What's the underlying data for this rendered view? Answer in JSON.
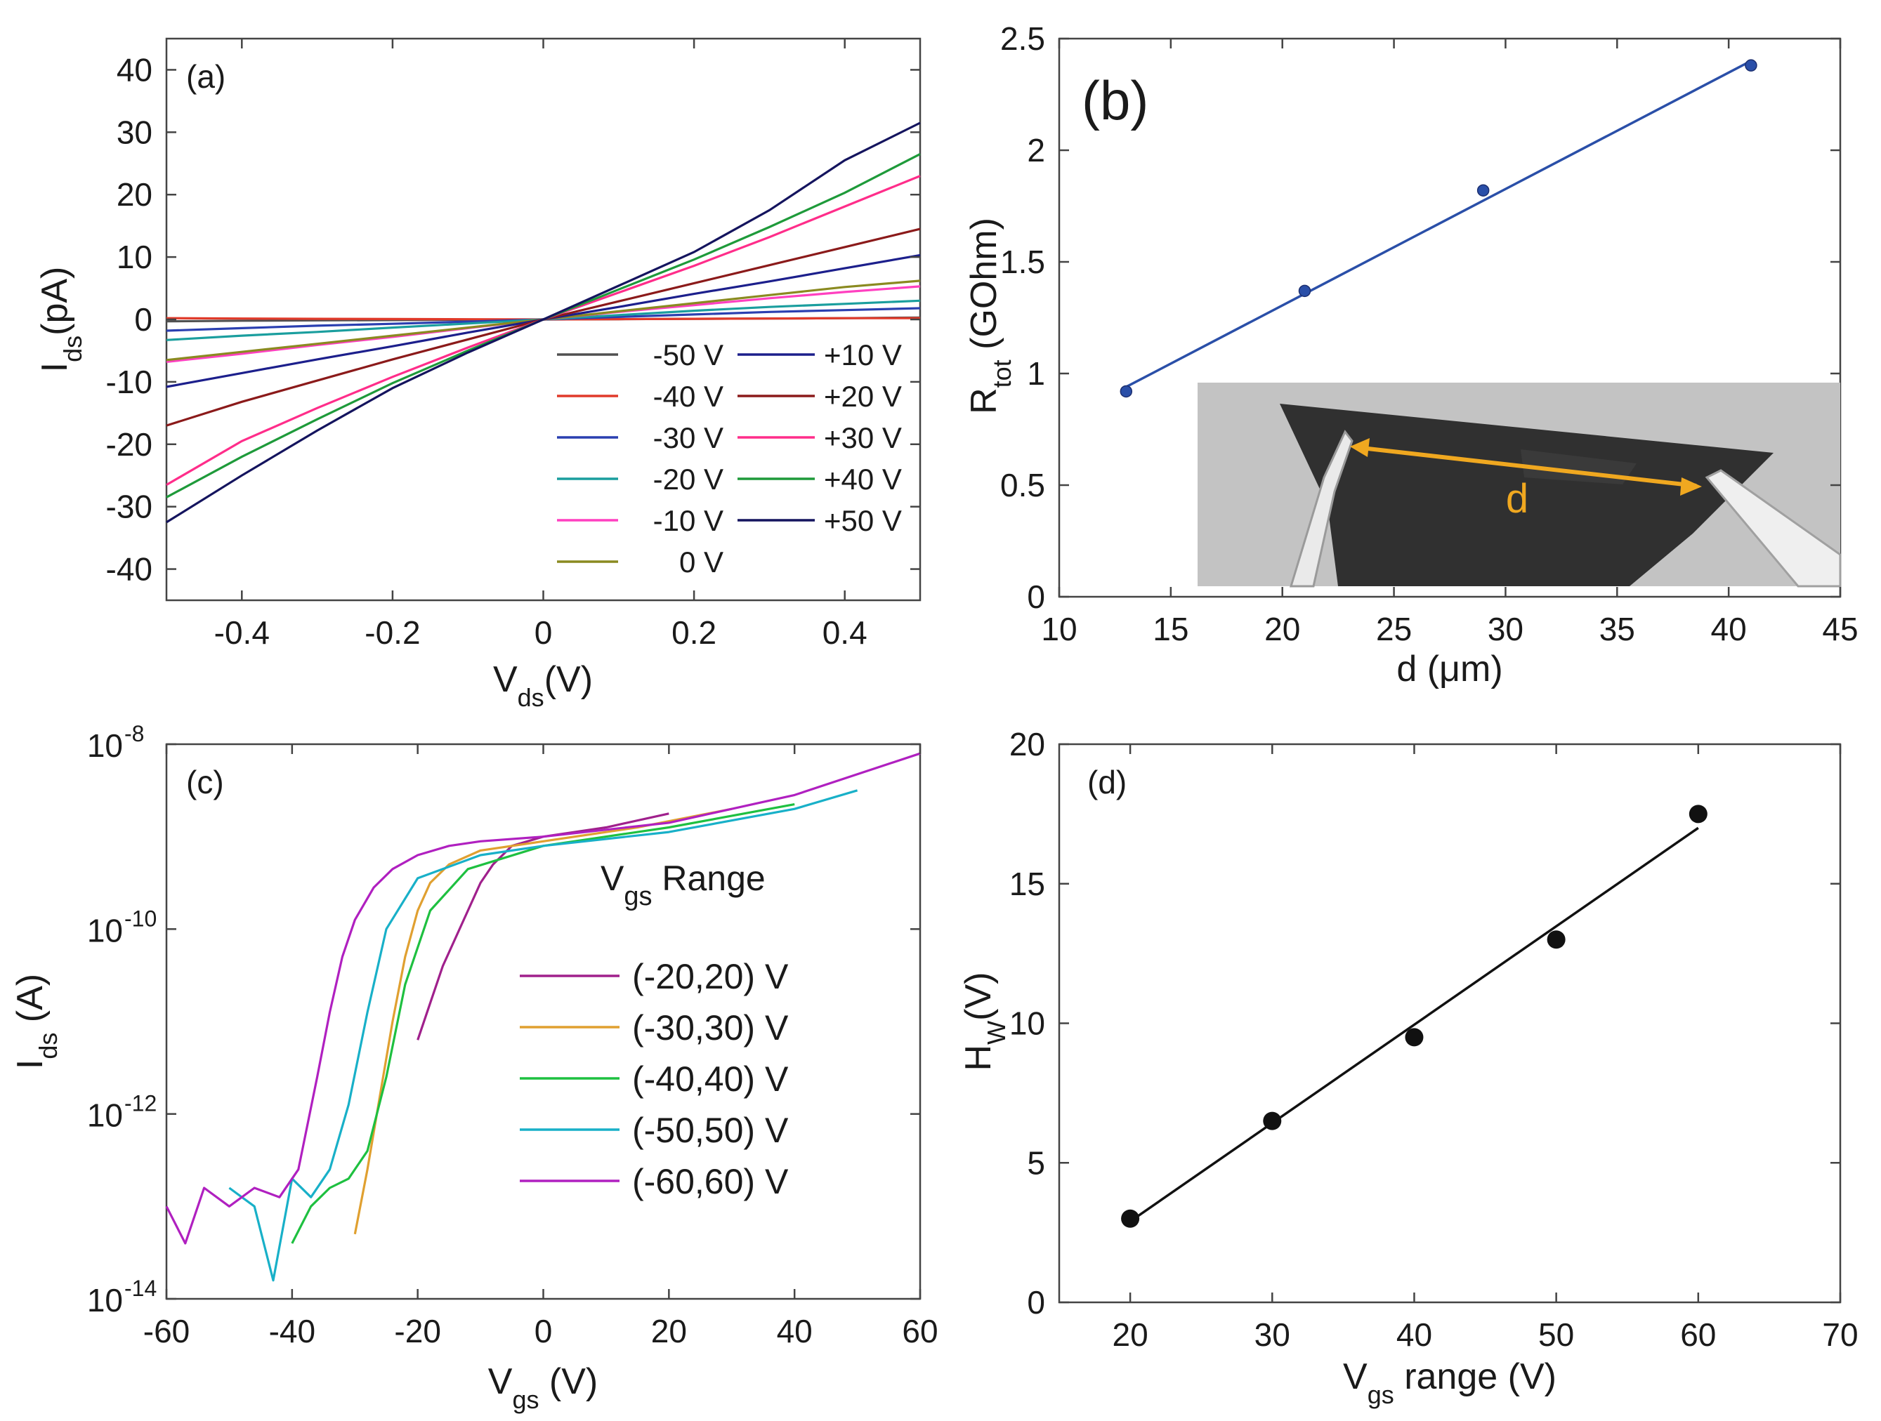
{
  "chart_data": [
    {
      "panel": "(a)",
      "type": "line",
      "xlabel": "V",
      "xlabel_sub": "ds",
      "xlabel_suffix": "(V)",
      "ylabel": "I",
      "ylabel_sub": "ds",
      "ylabel_suffix": "(pA)",
      "xlim": [
        -0.5,
        0.5
      ],
      "ylim": [
        -45,
        45
      ],
      "xticks": [
        -0.4,
        -0.2,
        0,
        0.2,
        0.4
      ],
      "xtick_labels": [
        "-0.4",
        "-0.2",
        "0",
        "0.2",
        "0.4"
      ],
      "yticks": [
        -40,
        -30,
        -20,
        -10,
        0,
        10,
        20,
        30,
        40
      ],
      "ytick_labels": [
        "-40",
        "-30",
        "-20",
        "-10",
        "0",
        "10",
        "20",
        "30",
        "40"
      ],
      "x": [
        -0.5,
        -0.4,
        -0.3,
        -0.2,
        -0.1,
        0,
        0.1,
        0.2,
        0.3,
        0.4,
        0.5
      ],
      "series": [
        {
          "name": "-50 V",
          "color": "#505050",
          "values": [
            -0.3,
            -0.2,
            -0.15,
            -0.1,
            -0.05,
            0,
            0.05,
            0.1,
            0.15,
            0.2,
            0.3
          ]
        },
        {
          "name": "-40 V",
          "color": "#e03a2a",
          "values": [
            0.2,
            0.15,
            0.1,
            0.07,
            0.03,
            0,
            0.05,
            0.1,
            0.15,
            0.2,
            0.2
          ]
        },
        {
          "name": "-30 V",
          "color": "#2a3fb0",
          "values": [
            -1.8,
            -1.4,
            -1.0,
            -0.7,
            -0.35,
            0,
            0.4,
            0.8,
            1.2,
            1.5,
            1.8
          ]
        },
        {
          "name": "-20 V",
          "color": "#1a9e9e",
          "values": [
            -3.3,
            -2.6,
            -2.0,
            -1.3,
            -0.65,
            0,
            0.7,
            1.4,
            2.0,
            2.5,
            3.0
          ]
        },
        {
          "name": "-10 V",
          "color": "#ff40c0",
          "values": [
            -6.8,
            -5.5,
            -4.1,
            -2.8,
            -1.4,
            0,
            1.2,
            2.3,
            3.4,
            4.4,
            5.3
          ]
        },
        {
          "name": "0  V",
          "color": "#8a8a20",
          "values": [
            -6.5,
            -5.2,
            -3.9,
            -2.6,
            -1.3,
            0,
            1.3,
            2.6,
            3.9,
            5.2,
            6.2
          ]
        },
        {
          "name": "+10 V",
          "color": "#1c1f8c",
          "values": [
            -10.8,
            -8.6,
            -6.4,
            -4.3,
            -2.1,
            0,
            2.0,
            4.1,
            6.1,
            8.2,
            10.3
          ]
        },
        {
          "name": "+20 V",
          "color": "#8b1a1a",
          "values": [
            -17.0,
            -13.2,
            -9.8,
            -6.4,
            -3.2,
            0,
            2.9,
            5.8,
            8.7,
            11.6,
            14.5
          ]
        },
        {
          "name": "+30 V",
          "color": "#ff2d8a",
          "values": [
            -26.5,
            -19.5,
            -14.2,
            -9.2,
            -4.5,
            0,
            4.3,
            8.6,
            13.2,
            18.1,
            23.0
          ]
        },
        {
          "name": "+40 V",
          "color": "#1e9a3a",
          "values": [
            -28.5,
            -22.0,
            -16.0,
            -10.2,
            -5.0,
            0,
            4.8,
            9.6,
            14.8,
            20.3,
            26.5
          ]
        },
        {
          "name": "+50 V",
          "color": "#14145e",
          "values": [
            -32.5,
            -25.0,
            -17.8,
            -11.0,
            -5.3,
            0,
            5.4,
            10.8,
            17.5,
            25.5,
            31.5
          ]
        }
      ]
    },
    {
      "panel": "(b)",
      "type": "scatter",
      "xlabel": "d (μm)",
      "ylabel": "R",
      "ylabel_sub": "tot",
      "ylabel_suffix": " (GOhm)",
      "xlim": [
        10,
        45
      ],
      "ylim": [
        0,
        2.5
      ],
      "xticks": [
        10,
        15,
        20,
        25,
        30,
        35,
        40,
        45
      ],
      "xtick_labels": [
        "10",
        "15",
        "20",
        "25",
        "30",
        "35",
        "40",
        "45"
      ],
      "yticks": [
        0,
        0.5,
        1,
        1.5,
        2,
        2.5
      ],
      "ytick_labels": [
        "0",
        "0.5",
        "1",
        "1.5",
        "2",
        "2.5"
      ],
      "points": {
        "x": [
          13,
          21,
          29,
          41
        ],
        "y": [
          0.92,
          1.37,
          1.82,
          2.38
        ]
      },
      "fit": {
        "x": [
          13,
          41
        ],
        "y": [
          0.94,
          2.4
        ]
      },
      "color": "#2a4fa8",
      "inset_label": "d"
    },
    {
      "panel": "(c)",
      "type": "line",
      "scale": "log",
      "xlabel": "V",
      "xlabel_sub": "gs",
      "xlabel_suffix": " (V)",
      "ylabel": "I",
      "ylabel_sub": "ds",
      "ylabel_suffix": " (A)",
      "xlim": [
        -60,
        60
      ],
      "ylim_exp": [
        -14,
        -8
      ],
      "xticks": [
        -60,
        -40,
        -20,
        0,
        20,
        40,
        60
      ],
      "xtick_labels": [
        "-60",
        "-40",
        "-20",
        "0",
        "20",
        "40",
        "60"
      ],
      "yticks_exp": [
        -14,
        -12,
        -10,
        -8
      ],
      "ytick_base": "10",
      "ytick_exps": [
        "-14",
        "-12",
        "-10",
        "-8"
      ],
      "legend_title": "V",
      "legend_title_sub": "gs",
      "legend_title_suffix": " Range",
      "series": [
        {
          "name": "(-20,20) V",
          "color": "#a0208c",
          "x": [
            -20,
            -18,
            -16,
            -14,
            -12,
            -10,
            -8,
            -5,
            0,
            10,
            20
          ],
          "log_values": [
            -11.2,
            -10.8,
            -10.4,
            -10.1,
            -9.8,
            -9.5,
            -9.3,
            -9.1,
            -9.0,
            -8.9,
            -8.75
          ]
        },
        {
          "name": "(-30,30) V",
          "color": "#e0a030",
          "x": [
            -30,
            -28,
            -26,
            -24,
            -22,
            -20,
            -18,
            -15,
            -10,
            0,
            15,
            30
          ],
          "log_values": [
            -13.3,
            -12.6,
            -11.8,
            -11.0,
            -10.3,
            -9.8,
            -9.5,
            -9.3,
            -9.15,
            -9.05,
            -8.9,
            -8.7
          ]
        },
        {
          "name": "(-40,40) V",
          "color": "#1ec040",
          "x": [
            -40,
            -37,
            -34,
            -31,
            -28,
            -25,
            -22,
            -18,
            -12,
            0,
            20,
            40
          ],
          "log_values": [
            -13.4,
            -13.0,
            -12.8,
            -12.7,
            -12.4,
            -11.6,
            -10.6,
            -9.8,
            -9.35,
            -9.1,
            -8.9,
            -8.65
          ]
        },
        {
          "name": "(-50,50) V",
          "color": "#18b0c8",
          "x": [
            -50,
            -46,
            -43,
            -40,
            -37,
            -34,
            -31,
            -28,
            -25,
            -20,
            -10,
            0,
            20,
            40,
            50
          ],
          "log_values": [
            -12.8,
            -13.0,
            -13.8,
            -12.7,
            -12.9,
            -12.6,
            -11.9,
            -10.9,
            -10.0,
            -9.45,
            -9.2,
            -9.1,
            -8.95,
            -8.7,
            -8.5
          ]
        },
        {
          "name": "(-60,60) V",
          "color": "#b020c0",
          "x": [
            -60,
            -57,
            -54,
            -50,
            -46,
            -42,
            -39,
            -36,
            -34,
            -32,
            -30,
            -27,
            -24,
            -20,
            -15,
            -10,
            0,
            20,
            40,
            60
          ],
          "log_values": [
            -13.0,
            -13.4,
            -12.8,
            -13.0,
            -12.8,
            -12.9,
            -12.6,
            -11.6,
            -10.9,
            -10.3,
            -9.9,
            -9.55,
            -9.35,
            -9.2,
            -9.1,
            -9.05,
            -9.0,
            -8.85,
            -8.55,
            -8.1
          ]
        }
      ]
    },
    {
      "panel": "(d)",
      "type": "scatter",
      "xlabel": "V",
      "xlabel_sub": "gs",
      "xlabel_suffix": " range (V)",
      "ylabel": "H",
      "ylabel_sub": "W",
      "ylabel_suffix": "(V)",
      "xlim": [
        15,
        70
      ],
      "ylim": [
        0,
        20
      ],
      "xticks": [
        20,
        30,
        40,
        50,
        60,
        70
      ],
      "xtick_labels": [
        "20",
        "30",
        "40",
        "50",
        "60",
        "70"
      ],
      "yticks": [
        0,
        5,
        10,
        15,
        20
      ],
      "ytick_labels": [
        "0",
        "5",
        "10",
        "15",
        "20"
      ],
      "points": {
        "x": [
          20,
          30,
          40,
          50,
          60
        ],
        "y": [
          3.0,
          6.5,
          9.5,
          13.0,
          17.5
        ]
      },
      "fit": {
        "x": [
          20,
          60
        ],
        "y": [
          2.9,
          17.0
        ]
      },
      "color": "#111111"
    }
  ]
}
